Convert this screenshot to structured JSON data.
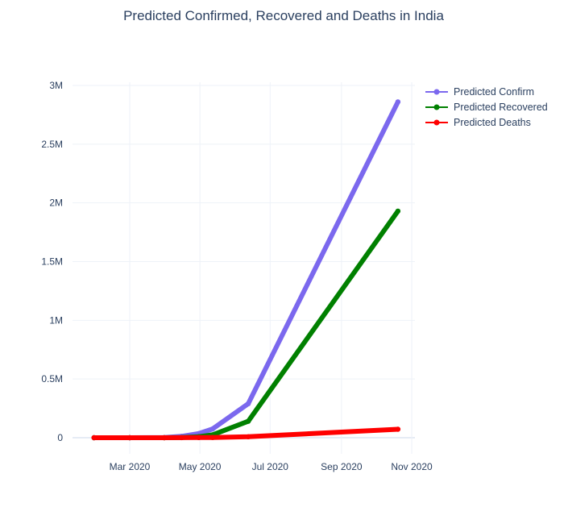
{
  "chart_data": {
    "type": "line",
    "title": "Predicted Confirmed, Recovered and Deaths in India",
    "xlabel": "",
    "ylabel": "",
    "x_axis": {
      "type": "date",
      "range": [
        "2020-01-12",
        "2020-10-26"
      ],
      "ticks": [
        {
          "date": "2020-03-01",
          "label": "Mar 2020"
        },
        {
          "date": "2020-05-01",
          "label": "May 2020"
        },
        {
          "date": "2020-07-01",
          "label": "Jul 2020"
        },
        {
          "date": "2020-09-01",
          "label": "Sep 2020"
        },
        {
          "date": "2020-11-01",
          "label": "Nov 2020"
        }
      ]
    },
    "y_axis": {
      "range": [
        -100000,
        3100000
      ],
      "ticks": [
        {
          "value": 0,
          "label": "0"
        },
        {
          "value": 500000,
          "label": "0.5M"
        },
        {
          "value": 1000000,
          "label": "1M"
        },
        {
          "value": 1500000,
          "label": "1.5M"
        },
        {
          "value": 2000000,
          "label": "2M"
        },
        {
          "value": 2500000,
          "label": "2.5M"
        },
        {
          "value": 3000000,
          "label": "3M"
        }
      ]
    },
    "grid": true,
    "legend": {
      "position": "top-right"
    },
    "series": [
      {
        "name": "Predicted Confirm",
        "color": "#7b68ee",
        "points": [
          {
            "x": "2020-01-30",
            "y": 0
          },
          {
            "x": "2020-03-01",
            "y": 3
          },
          {
            "x": "2020-03-31",
            "y": 1400
          },
          {
            "x": "2020-04-15",
            "y": 12000
          },
          {
            "x": "2020-04-30",
            "y": 35000
          },
          {
            "x": "2020-05-12",
            "y": 75000
          },
          {
            "x": "2020-06-12",
            "y": 290000
          },
          {
            "x": "2020-10-20",
            "y": 2860000
          }
        ]
      },
      {
        "name": "Predicted Recovered",
        "color": "#008000",
        "points": [
          {
            "x": "2020-01-30",
            "y": 0
          },
          {
            "x": "2020-03-01",
            "y": 3
          },
          {
            "x": "2020-03-31",
            "y": 100
          },
          {
            "x": "2020-04-15",
            "y": 1200
          },
          {
            "x": "2020-04-30",
            "y": 9000
          },
          {
            "x": "2020-05-12",
            "y": 25000
          },
          {
            "x": "2020-06-12",
            "y": 140000
          },
          {
            "x": "2020-10-20",
            "y": 1930000
          }
        ]
      },
      {
        "name": "Predicted Deaths",
        "color": "#ff0000",
        "points": [
          {
            "x": "2020-01-30",
            "y": 0
          },
          {
            "x": "2020-03-01",
            "y": 0
          },
          {
            "x": "2020-03-31",
            "y": 35
          },
          {
            "x": "2020-04-15",
            "y": 400
          },
          {
            "x": "2020-04-30",
            "y": 1100
          },
          {
            "x": "2020-05-12",
            "y": 2400
          },
          {
            "x": "2020-06-12",
            "y": 8500
          },
          {
            "x": "2020-10-20",
            "y": 72000
          }
        ]
      }
    ]
  }
}
